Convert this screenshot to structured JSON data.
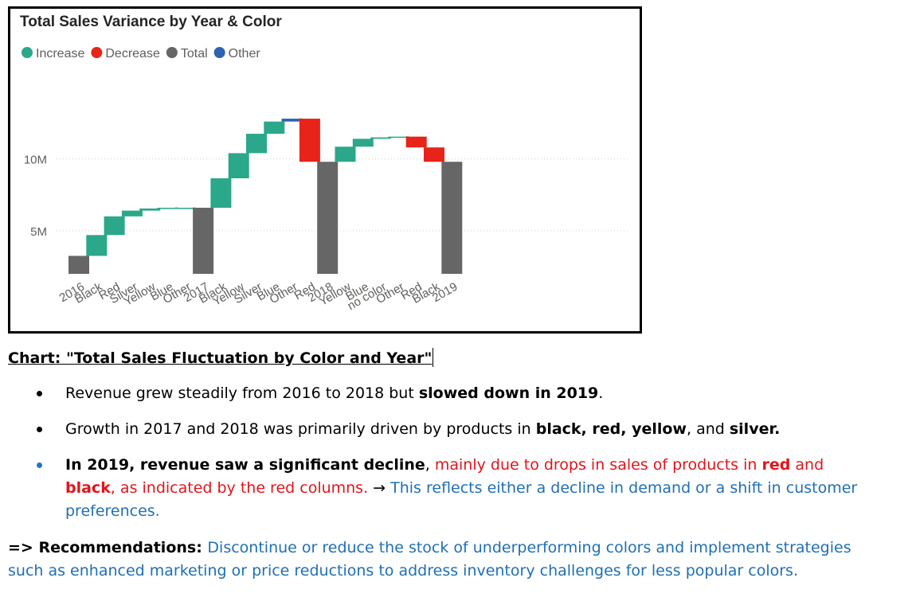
{
  "chart_data": {
    "type": "waterfall",
    "title": "Total Sales Variance by Year & Color",
    "legend": [
      {
        "label": "Increase",
        "color": "#2aa889"
      },
      {
        "label": "Decrease",
        "color": "#e8231a"
      },
      {
        "label": "Total",
        "color": "#666666"
      },
      {
        "label": "Other",
        "color": "#2d63b0"
      }
    ],
    "yticks": [
      {
        "label": "10M",
        "value": 10
      },
      {
        "label": "5M",
        "value": 5
      }
    ],
    "ymin": 2.0,
    "ymax": 14.8,
    "bars": [
      {
        "label": "2016",
        "kind": "Total",
        "start": 2.0,
        "end": 3.25
      },
      {
        "label": "Black",
        "kind": "Increase",
        "start": 3.25,
        "end": 4.7
      },
      {
        "label": "Red",
        "kind": "Increase",
        "start": 4.7,
        "end": 6.0
      },
      {
        "label": "Silver",
        "kind": "Increase",
        "start": 6.0,
        "end": 6.4
      },
      {
        "label": "Yellow",
        "kind": "Increase",
        "start": 6.4,
        "end": 6.55
      },
      {
        "label": "Blue",
        "kind": "Increase",
        "start": 6.55,
        "end": 6.6
      },
      {
        "label": "Other",
        "kind": "Increase",
        "start": 6.6,
        "end": 6.6
      },
      {
        "label": "2017",
        "kind": "Total",
        "start": 2.0,
        "end": 6.6
      },
      {
        "label": "Black",
        "kind": "Increase",
        "start": 6.6,
        "end": 8.65
      },
      {
        "label": "Yellow",
        "kind": "Increase",
        "start": 8.65,
        "end": 10.4
      },
      {
        "label": "Silver",
        "kind": "Increase",
        "start": 10.4,
        "end": 11.75
      },
      {
        "label": "Blue",
        "kind": "Increase",
        "start": 11.75,
        "end": 12.6
      },
      {
        "label": "Other",
        "kind": "Other",
        "start": 12.6,
        "end": 12.8
      },
      {
        "label": "Red",
        "kind": "Decrease",
        "start": 12.8,
        "end": 9.8
      },
      {
        "label": "2018",
        "kind": "Total",
        "start": 2.0,
        "end": 9.8
      },
      {
        "label": "Yellow",
        "kind": "Increase",
        "start": 9.8,
        "end": 10.85
      },
      {
        "label": "Blue",
        "kind": "Increase",
        "start": 10.85,
        "end": 11.4
      },
      {
        "label": "no color",
        "kind": "Increase",
        "start": 11.4,
        "end": 11.5
      },
      {
        "label": "Other",
        "kind": "Increase",
        "start": 11.5,
        "end": 11.55
      },
      {
        "label": "Red",
        "kind": "Decrease",
        "start": 11.55,
        "end": 10.8
      },
      {
        "label": "Black",
        "kind": "Decrease",
        "start": 10.8,
        "end": 9.8
      },
      {
        "label": "2019",
        "kind": "Total",
        "start": 2.0,
        "end": 9.8
      }
    ]
  },
  "caption": "Chart: \"Total Sales Fluctuation by Color and Year\"",
  "bullets": {
    "b1_a": "Revenue grew steadily from 2016 to 2018 but ",
    "b1_b": "slowed down in 2019",
    "b1_c": ".",
    "b2_a": "Growth in 2017 and 2018 was primarily driven by products in ",
    "b2_b": "black, red, yellow",
    "b2_c": ", and ",
    "b2_d": "silver.",
    "b3_a": "In 2019, revenue saw a significant decline",
    "b3_b": ", ",
    "b3_c": "mainly due to drops in sales of products in ",
    "b3_d": "red",
    "b3_e": " and ",
    "b3_f": "black",
    "b3_g": ", as indicated by the red columns. ",
    "b3_arrow": "→",
    "b3_h": " This reflects either a decline in demand or a shift in customer preferences."
  },
  "recommendation": {
    "prefix": "=> Recommendations: ",
    "text": "Discontinue or reduce the stock of underperforming colors and implement strategies such as enhanced marketing or price reductions to address inventory challenges for less popular colors."
  }
}
